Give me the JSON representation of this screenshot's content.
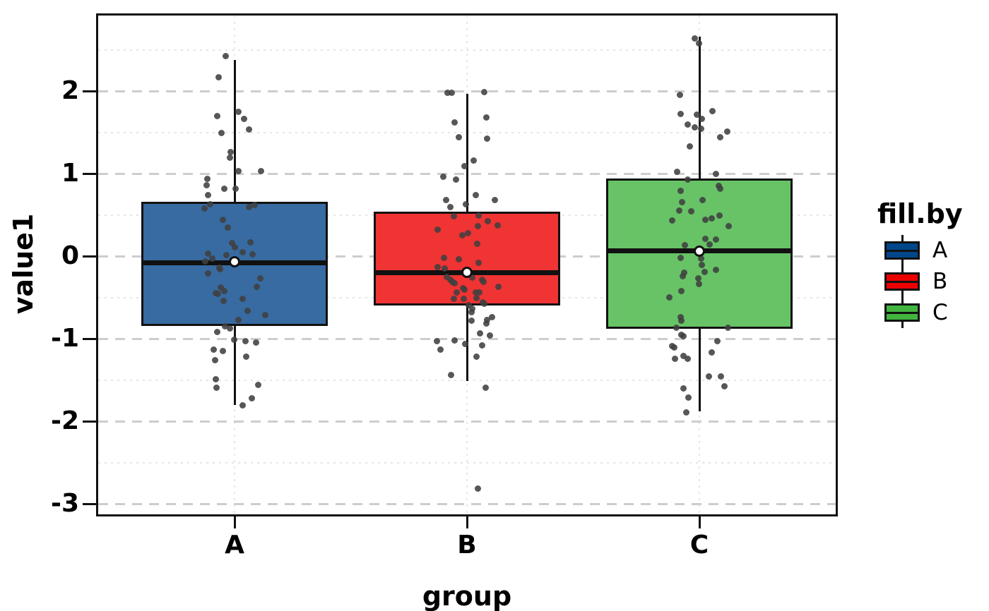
{
  "axes": {
    "y": {
      "label": "value1",
      "tick_labels": [
        "2",
        "1",
        "0",
        "-1",
        "-2",
        "-3"
      ],
      "tick_values": [
        2,
        1,
        0,
        -1,
        -2,
        -3
      ]
    },
    "x": {
      "label": "group",
      "categories": [
        "A",
        "B",
        "C"
      ]
    }
  },
  "legend": {
    "title": "fill.by",
    "entries": [
      {
        "label": "A",
        "fill": "#00468B"
      },
      {
        "label": "B",
        "fill": "#ED0000"
      },
      {
        "label": "C",
        "fill": "#42B540"
      }
    ]
  },
  "colors": {
    "grid_major": "#cdcdcd",
    "grid_minor": "#e4e4e4",
    "box_stroke": "#111111",
    "jitter_point": "rgba(64,64,64,0.88)",
    "mean_point_fill": "#ffffff"
  },
  "chart_data": {
    "type": "boxplot-jitter",
    "title": "",
    "xlabel": "group",
    "ylabel": "value1",
    "ylim": [
      -3.14,
      2.93
    ],
    "grid": "on",
    "legend_position": "right",
    "major_gridlines": [
      2,
      1,
      0,
      -1,
      -2,
      -3
    ],
    "minor_gridlines": [
      2.5,
      1.5,
      0.5,
      -0.5,
      -1.5,
      -2.5
    ],
    "categories": [
      "A",
      "B",
      "C"
    ],
    "series": [
      {
        "name": "A",
        "fill": "#376BA2",
        "legend_fill": "#00468B",
        "stats": {
          "whisker_low": -1.8,
          "q1": -0.85,
          "median": -0.08,
          "q3": 0.66,
          "whisker_high": 2.38,
          "mean": -0.07
        },
        "outliers": [],
        "points": [
          [
            -13,
            2.42
          ],
          [
            -23,
            2.17
          ],
          [
            -25,
            1.7
          ],
          [
            5,
            1.75
          ],
          [
            13,
            1.66
          ],
          [
            20,
            1.53
          ],
          [
            -19,
            1.49
          ],
          [
            -6,
            1.26
          ],
          [
            -7,
            1.19
          ],
          [
            5,
            1.03
          ],
          [
            37,
            1.03
          ],
          [
            -39,
            0.94
          ],
          [
            -40,
            0.86
          ],
          [
            -15,
            0.82
          ],
          [
            1,
            0.82
          ],
          [
            -38,
            0.74
          ],
          [
            -35,
            0.63
          ],
          [
            -43,
            0.58
          ],
          [
            20,
            0.59
          ],
          [
            28,
            0.62
          ],
          [
            -17,
            0.44
          ],
          [
            -10,
            0.35
          ],
          [
            -4,
            0.16
          ],
          [
            0,
            0.11
          ],
          [
            11,
            0.05
          ],
          [
            22,
            0.17
          ],
          [
            25,
            0.02
          ],
          [
            -38,
            0.03
          ],
          [
            -32,
            -0.03
          ],
          [
            -42,
            -0.06
          ],
          [
            -22,
            -0.14
          ],
          [
            -12,
            0.01
          ],
          [
            -38,
            -0.21
          ],
          [
            -21,
            -0.16
          ],
          [
            36,
            -0.27
          ],
          [
            31,
            -0.37
          ],
          [
            -20,
            -0.38
          ],
          [
            -15,
            -0.42
          ],
          [
            -27,
            -0.45
          ],
          [
            -24,
            -0.46
          ],
          [
            -16,
            -0.54
          ],
          [
            11,
            -0.52
          ],
          [
            18,
            -0.66
          ],
          [
            43,
            -0.71
          ],
          [
            5,
            -0.77
          ],
          [
            -14,
            -0.85
          ],
          [
            -7,
            -0.88
          ],
          [
            -25,
            -0.92
          ],
          [
            -1,
            -1.01
          ],
          [
            15,
            -1.03
          ],
          [
            30,
            -1.05
          ],
          [
            -30,
            -1.13
          ],
          [
            -17,
            -1.15
          ],
          [
            -28,
            -1.26
          ],
          [
            16,
            -1.22
          ],
          [
            -27,
            -1.49
          ],
          [
            -26,
            -1.59
          ],
          [
            33,
            -1.56
          ],
          [
            24,
            -1.72
          ],
          [
            11,
            -1.81
          ]
        ]
      },
      {
        "name": "B",
        "fill": "#F03333",
        "legend_fill": "#ED0000",
        "stats": {
          "whisker_low": -1.51,
          "q1": -0.6,
          "median": -0.2,
          "q3": 0.54,
          "whisker_high": 1.97,
          "mean": -0.2
        },
        "outliers": [
          -2.82
        ],
        "points": [
          [
            -28,
            1.98
          ],
          [
            -22,
            1.98
          ],
          [
            24,
            1.99
          ],
          [
            27,
            1.68
          ],
          [
            -18,
            1.62
          ],
          [
            -12,
            1.44
          ],
          [
            28,
            1.42
          ],
          [
            9,
            1.16
          ],
          [
            -4,
            1.09
          ],
          [
            -34,
            0.96
          ],
          [
            -16,
            0.93
          ],
          [
            -30,
            0.68
          ],
          [
            12,
            0.74
          ],
          [
            39,
            0.68
          ],
          [
            -24,
            0.59
          ],
          [
            -2,
            0.63
          ],
          [
            -19,
            0.48
          ],
          [
            16,
            0.49
          ],
          [
            29,
            0.42
          ],
          [
            43,
            0.37
          ],
          [
            15,
            0.36
          ],
          [
            -42,
            0.32
          ],
          [
            -7,
            0.25
          ],
          [
            1,
            0.28
          ],
          [
            14,
            0.15
          ],
          [
            -33,
            -0.02
          ],
          [
            -12,
            -0.04
          ],
          [
            16,
            -0.08
          ],
          [
            -42,
            -0.13
          ],
          [
            -32,
            -0.15
          ],
          [
            -29,
            -0.25
          ],
          [
            -24,
            -0.29
          ],
          [
            -21,
            -0.31
          ],
          [
            -18,
            -0.33
          ],
          [
            7,
            -0.26
          ],
          [
            21,
            -0.29
          ],
          [
            23,
            -0.31
          ],
          [
            44,
            -0.37
          ],
          [
            -6,
            -0.39
          ],
          [
            -4,
            -0.41
          ],
          [
            -15,
            -0.44
          ],
          [
            12,
            -0.44
          ],
          [
            17,
            -0.44
          ],
          [
            -19,
            -0.52
          ],
          [
            -5,
            -0.52
          ],
          [
            13,
            -0.51
          ],
          [
            22,
            -0.56
          ],
          [
            24,
            -0.58
          ],
          [
            2,
            -0.59
          ],
          [
            7,
            -0.64
          ],
          [
            28,
            -0.77
          ],
          [
            35,
            -0.74
          ],
          [
            6,
            -0.68
          ],
          [
            6,
            -0.78
          ],
          [
            27,
            -0.82
          ],
          [
            18,
            -0.94
          ],
          [
            32,
            -0.96
          ],
          [
            -43,
            -1.03
          ],
          [
            -18,
            -1.02
          ],
          [
            -3,
            -1.06
          ],
          [
            -38,
            -1.13
          ],
          [
            21,
            -1.08
          ],
          [
            13,
            -1.22
          ],
          [
            -23,
            -1.44
          ],
          [
            26,
            -1.59
          ],
          [
            15,
            -2.82
          ]
        ]
      },
      {
        "name": "C",
        "fill": "#67C366",
        "legend_fill": "#42B540",
        "stats": {
          "whisker_low": -1.88,
          "q1": -0.88,
          "median": 0.06,
          "q3": 0.94,
          "whisker_high": 2.66,
          "mean": 0.06
        },
        "outliers": [],
        "points": [
          [
            -7,
            2.64
          ],
          [
            -1,
            2.58
          ],
          [
            -28,
            1.95
          ],
          [
            -27,
            1.72
          ],
          [
            -4,
            1.71
          ],
          [
            3,
            1.66
          ],
          [
            18,
            1.76
          ],
          [
            -17,
            1.59
          ],
          [
            -7,
            1.56
          ],
          [
            2,
            1.54
          ],
          [
            39,
            1.51
          ],
          [
            29,
            1.44
          ],
          [
            -14,
            1.33
          ],
          [
            -32,
            1.02
          ],
          [
            -17,
            0.93
          ],
          [
            23,
            1.0
          ],
          [
            27,
            0.85
          ],
          [
            29,
            0.82
          ],
          [
            -27,
            0.79
          ],
          [
            4,
            0.68
          ],
          [
            -25,
            0.65
          ],
          [
            -29,
            0.55
          ],
          [
            -12,
            0.54
          ],
          [
            -39,
            0.43
          ],
          [
            8,
            0.44
          ],
          [
            17,
            0.46
          ],
          [
            28,
            0.49
          ],
          [
            41,
            0.36
          ],
          [
            8,
            0.21
          ],
          [
            23,
            0.2
          ],
          [
            14,
            0.14
          ],
          [
            -21,
            0.13
          ],
          [
            -27,
            -0.02
          ],
          [
            2,
            -0.03
          ],
          [
            3,
            -0.11
          ],
          [
            7,
            -0.19
          ],
          [
            23,
            -0.17
          ],
          [
            -2,
            -0.27
          ],
          [
            -22,
            -0.2
          ],
          [
            -24,
            -0.24
          ],
          [
            -1,
            -0.34
          ],
          [
            -26,
            -0.42
          ],
          [
            -43,
            -0.5
          ],
          [
            -27,
            -0.74
          ],
          [
            -26,
            -0.78
          ],
          [
            -33,
            -0.87
          ],
          [
            40,
            -0.87
          ],
          [
            -26,
            -0.95
          ],
          [
            -23,
            -0.97
          ],
          [
            25,
            -1.03
          ],
          [
            -39,
            -1.09
          ],
          [
            -36,
            -1.11
          ],
          [
            17,
            -1.17
          ],
          [
            -35,
            -1.24
          ],
          [
            -23,
            -1.21
          ],
          [
            -17,
            -1.24
          ],
          [
            13,
            -1.46
          ],
          [
            30,
            -1.46
          ],
          [
            35,
            -1.58
          ],
          [
            -23,
            -1.6
          ],
          [
            -16,
            -1.71
          ],
          [
            -19,
            -1.89
          ]
        ]
      }
    ]
  }
}
